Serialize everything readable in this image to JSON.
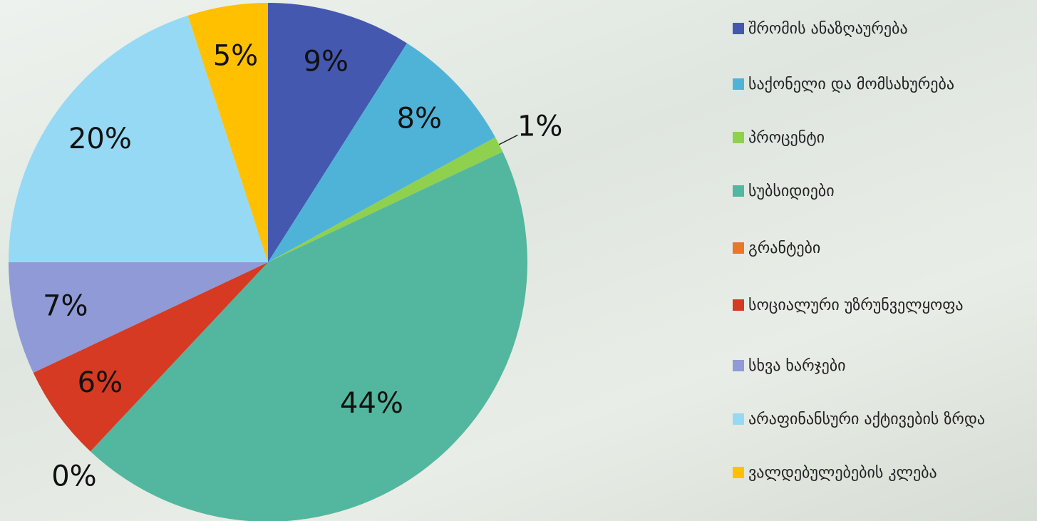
{
  "chart_data": {
    "type": "pie",
    "categories": [
      "შრომის ანაზღაურება",
      "საქონელი და მომსახურება",
      "პროცენტი",
      "სუბსიდიები",
      "გრანტები",
      "სოციალური უზრუნველყოფა",
      "სხვა ხარჯები",
      "არაფინანსური აქტივების ზრდა",
      "ვალდებულებების კლება"
    ],
    "values": [
      9,
      8,
      1,
      44,
      0,
      6,
      7,
      20,
      5
    ],
    "value_labels": [
      "9%",
      "8%",
      "1%",
      "44%",
      "0%",
      "6%",
      "7%",
      "20%",
      "5%"
    ],
    "colors": [
      "#4558b0",
      "#4fb3d8",
      "#8fd14f",
      "#52b79e",
      "#e8762b",
      "#d63a22",
      "#8f9ad6",
      "#96d9f5",
      "#ffc000"
    ],
    "legend": "right"
  }
}
